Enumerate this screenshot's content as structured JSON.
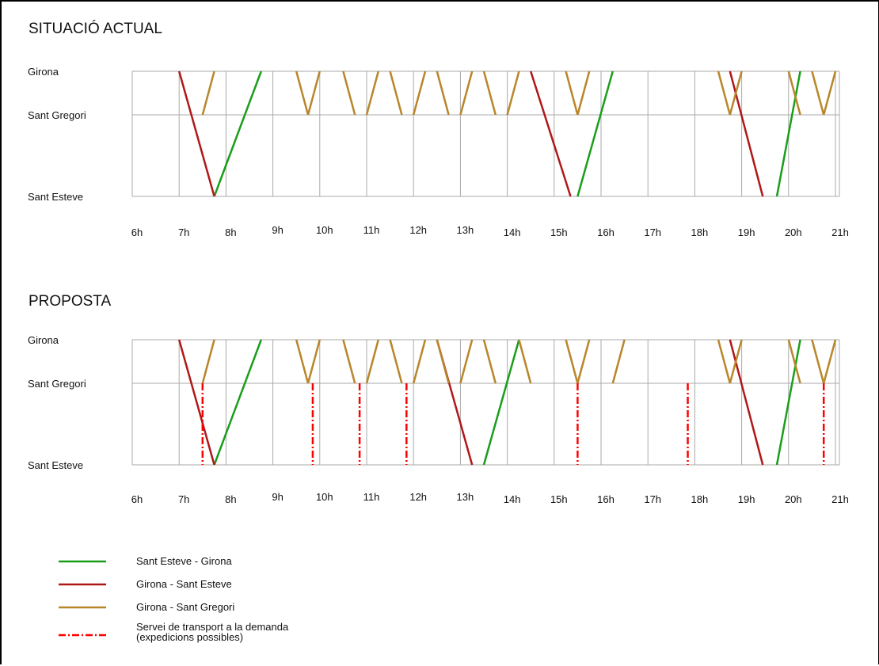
{
  "colors": {
    "sant_esteve_girona": "#1a9e1a",
    "girona_sant_esteve": "#b01818",
    "girona_sant_gregori": "#b8862b",
    "on_demand": "#ff0000",
    "grid": "#aaaaaa"
  },
  "stations": [
    "Girona",
    "Sant Gregori",
    "Sant Esteve"
  ],
  "hours": [
    "6h",
    "7h",
    "8h",
    "9h",
    "10h",
    "11h",
    "12h",
    "13h",
    "14h",
    "15h",
    "16h",
    "17h",
    "18h",
    "19h",
    "20h",
    "21h"
  ],
  "chart_data": [
    {
      "type": "line",
      "title": "SITUACIÓ ACTUAL",
      "stations": [
        "Girona",
        "Sant Gregori",
        "Sant Esteve"
      ],
      "x_range": [
        6.0,
        21.2
      ],
      "series": [
        {
          "name": "Sant Esteve - Girona",
          "trips": [
            [
              7.75,
              8.75
            ],
            [
              15.5,
              16.25
            ],
            [
              19.75,
              20.25
            ]
          ]
        },
        {
          "name": "Girona - Sant Esteve",
          "trips": [
            [
              7.0,
              7.75
            ],
            [
              14.5,
              15.35
            ],
            [
              18.75,
              19.45
            ]
          ]
        },
        {
          "name": "Girona - Sant Gregori",
          "trips": [
            [
              7.5,
              7.75,
              "SG-G"
            ],
            [
              9.5,
              9.75,
              "G-SG"
            ],
            [
              9.75,
              10.0,
              "SG-G"
            ],
            [
              10.5,
              10.75,
              "G-SG"
            ],
            [
              11.0,
              11.25,
              "SG-G"
            ],
            [
              11.5,
              11.75,
              "G-SG"
            ],
            [
              12.0,
              12.25,
              "SG-G"
            ],
            [
              12.5,
              12.75,
              "G-SG"
            ],
            [
              13.0,
              13.25,
              "SG-G"
            ],
            [
              13.5,
              13.75,
              "G-SG"
            ],
            [
              14.0,
              14.25,
              "SG-G"
            ],
            [
              15.25,
              15.5,
              "G-SG"
            ],
            [
              15.5,
              15.75,
              "SG-G"
            ],
            [
              18.5,
              18.75,
              "G-SG"
            ],
            [
              18.75,
              19.0,
              "SG-G"
            ],
            [
              20.0,
              20.25,
              "G-SG"
            ],
            [
              20.5,
              20.75,
              "G-SG"
            ],
            [
              20.75,
              21.0,
              "SG-G"
            ]
          ]
        }
      ]
    },
    {
      "type": "line",
      "title": "PROPOSTA",
      "stations": [
        "Girona",
        "Sant Gregori",
        "Sant Esteve"
      ],
      "x_range": [
        6.0,
        21.2
      ],
      "series": [
        {
          "name": "Sant Esteve - Girona",
          "trips": [
            [
              7.75,
              8.75
            ],
            [
              13.5,
              14.25
            ],
            [
              19.75,
              20.25
            ]
          ]
        },
        {
          "name": "Girona - Sant Esteve",
          "trips": [
            [
              7.0,
              7.75
            ],
            [
              12.5,
              13.25
            ],
            [
              18.75,
              19.45
            ]
          ]
        },
        {
          "name": "Girona - Sant Gregori",
          "trips": [
            [
              7.5,
              7.75,
              "SG-G"
            ],
            [
              9.5,
              9.75,
              "G-SG"
            ],
            [
              9.75,
              10.0,
              "SG-G"
            ],
            [
              10.5,
              10.75,
              "G-SG"
            ],
            [
              11.0,
              11.25,
              "SG-G"
            ],
            [
              11.5,
              11.75,
              "G-SG"
            ],
            [
              12.0,
              12.25,
              "SG-G"
            ],
            [
              12.5,
              12.75,
              "G-SG"
            ],
            [
              13.0,
              13.25,
              "SG-G"
            ],
            [
              13.5,
              13.75,
              "G-SG"
            ],
            [
              14.25,
              14.5,
              "G-SG"
            ],
            [
              15.25,
              15.5,
              "G-SG"
            ],
            [
              15.5,
              15.75,
              "SG-G"
            ],
            [
              16.25,
              16.5,
              "SG-G"
            ],
            [
              18.5,
              18.75,
              "G-SG"
            ],
            [
              18.75,
              19.0,
              "SG-G"
            ],
            [
              20.0,
              20.25,
              "G-SG"
            ],
            [
              20.5,
              20.75,
              "G-SG"
            ],
            [
              20.75,
              21.0,
              "SG-G"
            ]
          ]
        },
        {
          "name": "Servei de transport a la demanda",
          "on_demand_hours": [
            7.5,
            9.85,
            10.85,
            11.85,
            15.5,
            17.85,
            20.75
          ]
        }
      ]
    }
  ],
  "legend": [
    {
      "label": "Sant Esteve - Girona",
      "key": "sant_esteve_girona",
      "dashed": false
    },
    {
      "label": "Girona - Sant Esteve",
      "key": "girona_sant_esteve",
      "dashed": false
    },
    {
      "label": "Girona - Sant Gregori",
      "key": "girona_sant_gregori",
      "dashed": false
    },
    {
      "label": "Servei de transport a la demanda",
      "label2": "(expedicions possibles)",
      "key": "on_demand",
      "dashed": true
    }
  ]
}
